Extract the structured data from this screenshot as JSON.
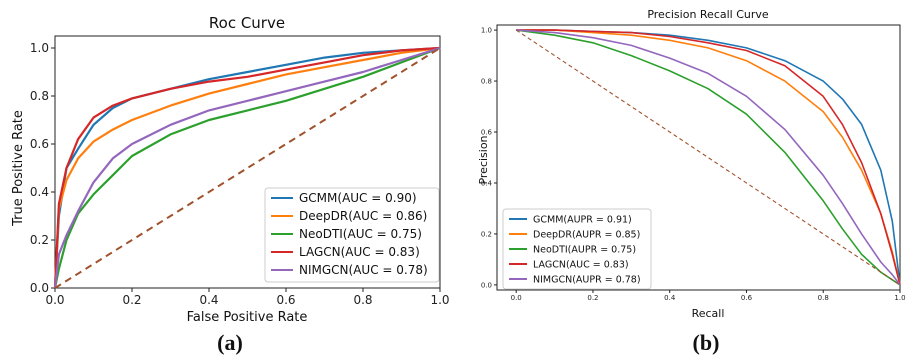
{
  "chart_data": [
    {
      "type": "line",
      "title": "Roc Curve",
      "xlabel": "False Positive Rate",
      "ylabel": "True Positive Rate",
      "xlim": [
        0,
        1
      ],
      "ylim": [
        0,
        1.05
      ],
      "xticks": [
        "0.0",
        "0.2",
        "0.4",
        "0.6",
        "0.8",
        "1.0"
      ],
      "yticks": [
        "0.0",
        "0.2",
        "0.4",
        "0.6",
        "0.8",
        "1.0"
      ],
      "grid": false,
      "legend_position": "lower-right",
      "caption": "(a)",
      "series": [
        {
          "name": "GCMM(AUC = 0.90)",
          "color": "#1f77b4",
          "x": [
            0,
            0.01,
            0.03,
            0.06,
            0.1,
            0.15,
            0.2,
            0.3,
            0.4,
            0.5,
            0.6,
            0.7,
            0.8,
            0.9,
            1.0
          ],
          "y": [
            0,
            0.3,
            0.5,
            0.58,
            0.68,
            0.75,
            0.79,
            0.83,
            0.87,
            0.9,
            0.93,
            0.96,
            0.98,
            0.99,
            1.0
          ]
        },
        {
          "name": "DeepDR(AUC = 0.86)",
          "color": "#ff7f0e",
          "x": [
            0,
            0.01,
            0.03,
            0.06,
            0.1,
            0.15,
            0.2,
            0.3,
            0.4,
            0.5,
            0.6,
            0.7,
            0.8,
            0.9,
            1.0
          ],
          "y": [
            0,
            0.33,
            0.45,
            0.54,
            0.61,
            0.66,
            0.7,
            0.76,
            0.81,
            0.85,
            0.89,
            0.92,
            0.95,
            0.98,
            1.0
          ]
        },
        {
          "name": "NeoDTI(AUC = 0.75)",
          "color": "#2ca02c",
          "x": [
            0,
            0.01,
            0.03,
            0.06,
            0.1,
            0.15,
            0.2,
            0.3,
            0.4,
            0.5,
            0.6,
            0.7,
            0.8,
            0.9,
            1.0
          ],
          "y": [
            0,
            0.08,
            0.2,
            0.31,
            0.39,
            0.47,
            0.55,
            0.64,
            0.7,
            0.74,
            0.78,
            0.83,
            0.88,
            0.94,
            1.0
          ]
        },
        {
          "name": "LAGCN(AUC = 0.83)",
          "color": "#d62728",
          "x": [
            0,
            0.01,
            0.03,
            0.06,
            0.1,
            0.15,
            0.2,
            0.3,
            0.4,
            0.5,
            0.6,
            0.7,
            0.8,
            0.9,
            1.0
          ],
          "y": [
            0,
            0.35,
            0.5,
            0.62,
            0.71,
            0.76,
            0.79,
            0.83,
            0.86,
            0.88,
            0.91,
            0.94,
            0.97,
            0.99,
            1.0
          ]
        },
        {
          "name": "NIMGCN(AUC = 0.78)",
          "color": "#9467bd",
          "x": [
            0,
            0.01,
            0.03,
            0.06,
            0.1,
            0.15,
            0.2,
            0.3,
            0.4,
            0.5,
            0.6,
            0.7,
            0.8,
            0.9,
            1.0
          ],
          "y": [
            0,
            0.14,
            0.22,
            0.32,
            0.44,
            0.54,
            0.6,
            0.68,
            0.74,
            0.78,
            0.82,
            0.86,
            0.9,
            0.95,
            1.0
          ]
        },
        {
          "name": "",
          "color": "#a0522d",
          "dashed": true,
          "x": [
            0,
            1
          ],
          "y": [
            0,
            1
          ]
        }
      ]
    },
    {
      "type": "line",
      "title": "Precision Recall Curve",
      "xlabel": "Recall",
      "ylabel": "Precision",
      "xlim": [
        -0.05,
        1.0
      ],
      "ylim": [
        -0.02,
        1.02
      ],
      "xticks": [
        "0.0",
        "0.2",
        "0.4",
        "0.6",
        "0.8",
        "1.0"
      ],
      "yticks": [
        "0.0",
        "0.2",
        "0.4",
        "0.6",
        "0.8",
        "1.0"
      ],
      "grid": false,
      "legend_position": "lower-left",
      "caption": "(b)",
      "series": [
        {
          "name": "GCMM(AUPR = 0.91)",
          "color": "#1f77b4",
          "x": [
            0,
            0.1,
            0.2,
            0.3,
            0.4,
            0.5,
            0.6,
            0.7,
            0.8,
            0.85,
            0.9,
            0.95,
            0.98,
            1.0
          ],
          "y": [
            1.0,
            1.0,
            0.995,
            0.99,
            0.98,
            0.96,
            0.93,
            0.88,
            0.8,
            0.73,
            0.63,
            0.45,
            0.25,
            0.0
          ]
        },
        {
          "name": "DeepDR(AUPR = 0.85)",
          "color": "#ff7f0e",
          "x": [
            0,
            0.1,
            0.2,
            0.3,
            0.4,
            0.5,
            0.6,
            0.7,
            0.8,
            0.85,
            0.9,
            0.95,
            0.98,
            1.0
          ],
          "y": [
            1.0,
            1.0,
            0.99,
            0.98,
            0.96,
            0.93,
            0.88,
            0.8,
            0.68,
            0.58,
            0.45,
            0.28,
            0.13,
            0.0
          ]
        },
        {
          "name": "NeoDTI(AUPR = 0.75)",
          "color": "#2ca02c",
          "x": [
            0,
            0.1,
            0.2,
            0.3,
            0.4,
            0.5,
            0.6,
            0.7,
            0.8,
            0.85,
            0.9,
            0.95,
            0.98,
            1.0
          ],
          "y": [
            1.0,
            0.98,
            0.95,
            0.9,
            0.84,
            0.77,
            0.67,
            0.52,
            0.33,
            0.22,
            0.12,
            0.05,
            0.02,
            0.0
          ]
        },
        {
          "name": "LAGCN(AUC = 0.83)",
          "color": "#d62728",
          "x": [
            0,
            0.1,
            0.2,
            0.3,
            0.4,
            0.5,
            0.6,
            0.7,
            0.8,
            0.85,
            0.9,
            0.95,
            0.98,
            1.0
          ],
          "y": [
            1.0,
            1.0,
            0.995,
            0.99,
            0.975,
            0.95,
            0.92,
            0.86,
            0.74,
            0.63,
            0.48,
            0.28,
            0.12,
            0.0
          ]
        },
        {
          "name": "NIMGCN(AUPR = 0.78)",
          "color": "#9467bd",
          "x": [
            0,
            0.1,
            0.2,
            0.3,
            0.4,
            0.5,
            0.6,
            0.7,
            0.8,
            0.85,
            0.9,
            0.95,
            0.98,
            1.0
          ],
          "y": [
            1.0,
            0.99,
            0.97,
            0.94,
            0.89,
            0.83,
            0.74,
            0.61,
            0.43,
            0.32,
            0.2,
            0.09,
            0.04,
            0.0
          ]
        },
        {
          "name": "",
          "color": "#a0522d",
          "dashed": true,
          "x": [
            0,
            1
          ],
          "y": [
            1,
            0
          ]
        }
      ]
    }
  ]
}
